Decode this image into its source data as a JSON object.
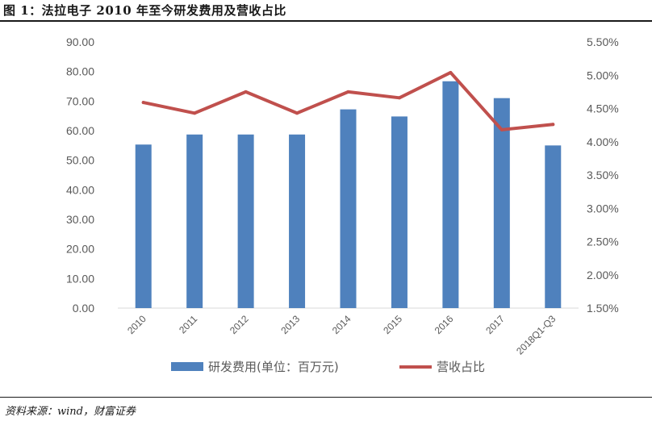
{
  "header": {
    "title": "图 1：法拉电子 2010 年至今研发费用及营收占比"
  },
  "footer": {
    "source": "资料来源：wind，财富证券"
  },
  "chart_data": {
    "type": "bar",
    "title": "图 1：法拉电子 2010 年至今研发费用及营收占比",
    "categories": [
      "2010",
      "2011",
      "2012",
      "2013",
      "2014",
      "2015",
      "2016",
      "2017",
      "2018Q1-Q3"
    ],
    "series": [
      {
        "name": "研发费用(单位：百万元)",
        "type": "bar",
        "axis": "left",
        "color": "#4f81bd",
        "values": [
          55.3,
          58.7,
          58.7,
          58.7,
          67.2,
          64.8,
          76.7,
          71.0,
          55.0
        ]
      },
      {
        "name": "营收占比",
        "type": "line",
        "axis": "right",
        "color": "#c0504d",
        "values": [
          4.59,
          4.43,
          4.75,
          4.43,
          4.75,
          4.66,
          5.04,
          4.18,
          4.26
        ]
      }
    ],
    "y_left": {
      "min": 0,
      "max": 90,
      "step": 10,
      "tick_labels": [
        "0.00",
        "10.00",
        "20.00",
        "30.00",
        "40.00",
        "50.00",
        "60.00",
        "70.00",
        "80.00",
        "90.00"
      ]
    },
    "y_right": {
      "min": 1.5,
      "max": 5.5,
      "step": 0.5,
      "tick_labels": [
        "1.50%",
        "2.00%",
        "2.50%",
        "3.00%",
        "3.50%",
        "4.00%",
        "4.50%",
        "5.00%",
        "5.50%"
      ]
    },
    "legend": {
      "position": "bottom",
      "items": [
        "研发费用(单位：百万元)",
        "营收占比"
      ]
    },
    "grid": false
  }
}
